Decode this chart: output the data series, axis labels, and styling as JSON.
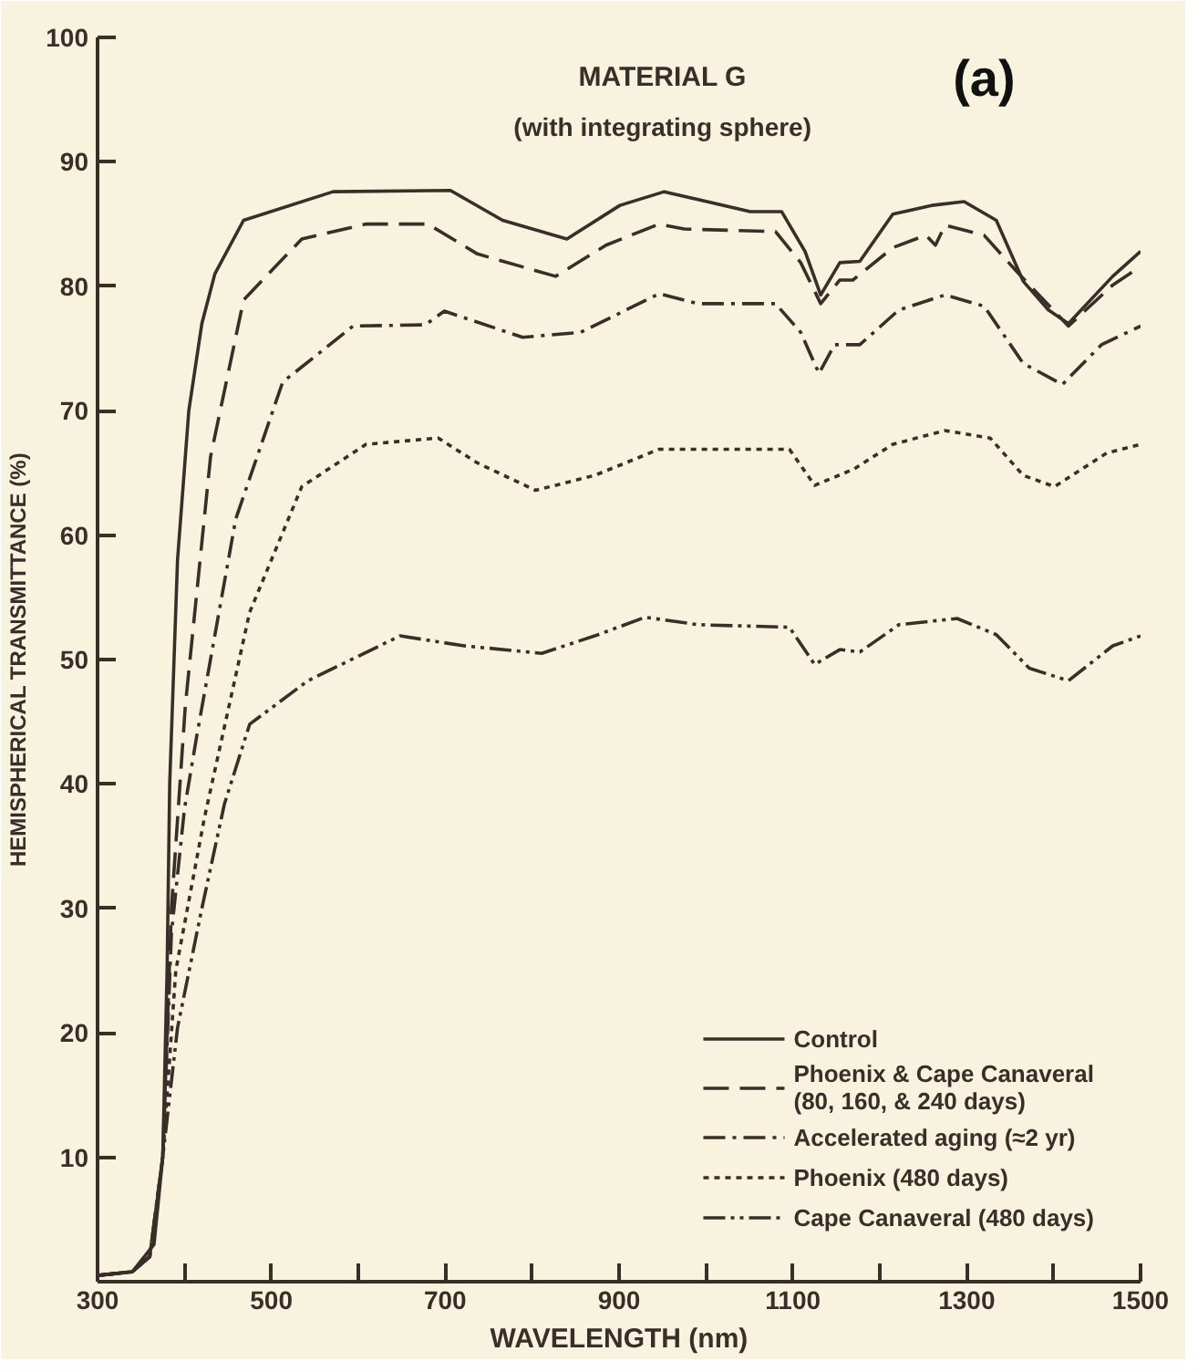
{
  "chart_data": {
    "type": "line",
    "title": "MATERIAL G",
    "subtitle": "(with integrating sphere)",
    "xlabel": "WAVELENGTH (nm)",
    "ylabel": "HEMISPHERICAL TRANSMITTANCE (%)",
    "annotations": [
      "(a)"
    ],
    "xlim": [
      300,
      1500
    ],
    "ylim": [
      0,
      100
    ],
    "xticks": [
      300,
      {
        "value": 400,
        "label": null
      },
      500,
      {
        "value": 600,
        "label": null
      },
      700,
      {
        "value": 800,
        "label": null
      },
      900,
      {
        "value": 1000,
        "label": null
      },
      1100,
      {
        "value": 1200,
        "label": null
      },
      1300,
      {
        "value": 1400,
        "label": null
      },
      1500
    ],
    "yticks": [
      {
        "value": 0,
        "label": null
      },
      10,
      20,
      30,
      40,
      50,
      60,
      70,
      80,
      90,
      100
    ],
    "grid": false,
    "legend": "bottom right",
    "series": [
      {
        "name": "Control",
        "color": "#3a2e28",
        "line_style": "solid",
        "x": [
          300,
          340,
          365,
          375,
          380,
          383,
          392,
          405,
          420,
          435,
          468,
          571,
          706,
          766,
          840,
          901,
          952,
          1051,
          1087,
          1114,
          1132,
          1154,
          1177,
          1215,
          1260,
          1297,
          1334,
          1365,
          1394,
          1417,
          1468,
          1500
        ],
        "values": [
          0.5,
          0.8,
          3,
          10,
          25,
          40,
          58,
          70,
          77,
          81,
          85.3,
          87.6,
          87.7,
          85.3,
          83.8,
          86.5,
          87.6,
          86,
          86,
          82.8,
          79.3,
          81.9,
          82,
          85.8,
          86.5,
          86.8,
          85.3,
          80.4,
          78.1,
          77,
          80.8,
          82.8
        ]
      },
      {
        "name": "Phoenix & Cape Canaveral\n(80, 160, & 240 days)",
        "color": "#3a2e28",
        "line_style": "dashed",
        "x": [
          300,
          340,
          360,
          375,
          385,
          401,
          430,
          468,
          535,
          609,
          680,
          737,
          827,
          885,
          946,
          975,
          1080,
          1109,
          1132,
          1154,
          1169,
          1215,
          1253,
          1264,
          1275,
          1320,
          1356,
          1417,
          1468,
          1500
        ],
        "values": [
          0.5,
          0.8,
          2,
          10,
          30,
          46.3,
          66.3,
          78.9,
          83.8,
          85,
          85,
          82.6,
          80.8,
          83.3,
          85,
          84.6,
          84.4,
          81.9,
          78.6,
          80.5,
          80.5,
          83.1,
          84.1,
          83.3,
          84.9,
          84.1,
          81.3,
          76.8,
          80.1,
          81.6
        ]
      },
      {
        "name": "Accelerated aging (≈2 yr)",
        "color": "#3a2e28",
        "line_style": "dashdot",
        "x": [
          300,
          340,
          360,
          375,
          385,
          400,
          414,
          459,
          513,
          594,
          677,
          699,
          789,
          856,
          946,
          991,
          1080,
          1109,
          1130,
          1148,
          1177,
          1222,
          1275,
          1320,
          1365,
          1410,
          1455,
          1500
        ],
        "values": [
          0.5,
          0.8,
          2,
          10,
          28,
          38,
          43.8,
          61.3,
          72.3,
          76.8,
          76.9,
          78,
          75.9,
          76.3,
          79.4,
          78.6,
          78.6,
          76.3,
          73,
          75.3,
          75.3,
          78.1,
          79.3,
          78.4,
          73.8,
          72.1,
          75.3,
          76.8
        ]
      },
      {
        "name": "Phoenix (480 days)",
        "color": "#3a2e28",
        "line_style": "dotted",
        "x": [
          300,
          340,
          360,
          375,
          390,
          423,
          475,
          535,
          609,
          692,
          737,
          804,
          872,
          946,
          1096,
          1125,
          1170,
          1215,
          1275,
          1327,
          1365,
          1401,
          1461,
          1500
        ],
        "values": [
          0.5,
          0.8,
          2,
          10,
          25,
          37.3,
          53.8,
          63.9,
          67.3,
          67.8,
          65.8,
          63.6,
          64.8,
          66.9,
          66.9,
          64,
          65.3,
          67.3,
          68.4,
          67.8,
          64.8,
          63.9,
          66.6,
          67.3
        ]
      },
      {
        "name": "Cape Canaveral (480 days)",
        "color": "#3a2e28",
        "line_style": "dashdotdot",
        "x": [
          300,
          340,
          360,
          375,
          392,
          420,
          446,
          475,
          542,
          648,
          722,
          811,
          872,
          930,
          991,
          1096,
          1125,
          1154,
          1177,
          1222,
          1289,
          1334,
          1372,
          1417,
          1468,
          1500
        ],
        "values": [
          0.5,
          0.8,
          2,
          10,
          20.4,
          30,
          38.4,
          44.8,
          48.3,
          51.9,
          51.1,
          50.5,
          51.9,
          53.4,
          52.8,
          52.6,
          49.6,
          50.8,
          50.6,
          52.8,
          53.3,
          52,
          49.3,
          48.3,
          51.1,
          51.9
        ]
      }
    ]
  }
}
